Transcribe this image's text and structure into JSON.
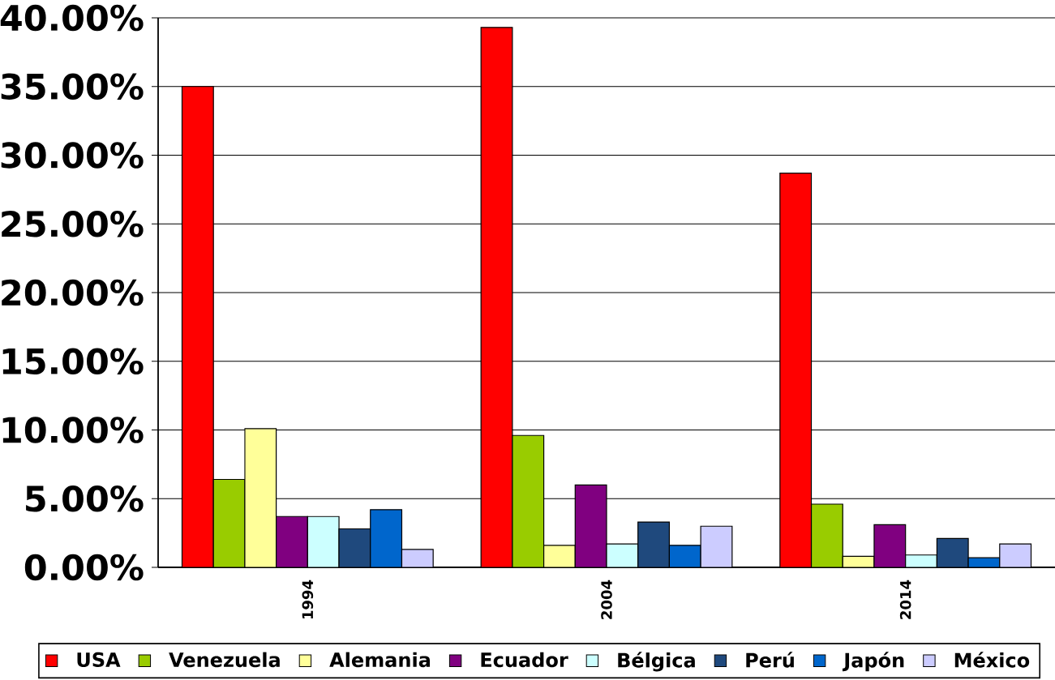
{
  "chart_data": {
    "type": "bar",
    "categories": [
      "1994",
      "2004",
      "2014"
    ],
    "series": [
      {
        "name": "USA",
        "color": "#ff0000",
        "values": [
          35.0,
          39.3,
          28.7
        ]
      },
      {
        "name": "Venezuela",
        "color": "#99cc00",
        "values": [
          6.4,
          9.6,
          4.6
        ]
      },
      {
        "name": "Alemania",
        "color": "#ffff99",
        "values": [
          10.1,
          1.6,
          0.8
        ]
      },
      {
        "name": "Ecuador",
        "color": "#800080",
        "values": [
          3.7,
          6.0,
          3.1
        ]
      },
      {
        "name": "Bélgica",
        "color": "#ccffff",
        "values": [
          3.7,
          1.7,
          0.9
        ]
      },
      {
        "name": "Perú",
        "color": "#1f497d",
        "values": [
          2.8,
          3.3,
          2.1
        ]
      },
      {
        "name": "Japón",
        "color": "#0066cc",
        "values": [
          4.2,
          1.6,
          0.7
        ]
      },
      {
        "name": "México",
        "color": "#ccccff",
        "values": [
          1.3,
          3.0,
          1.7
        ]
      }
    ],
    "ylim": [
      0,
      40
    ],
    "yticks": [
      {
        "value": 0,
        "label": "0.00%"
      },
      {
        "value": 5,
        "label": "5.00%"
      },
      {
        "value": 10,
        "label": "10.00%"
      },
      {
        "value": 15,
        "label": "15.00%"
      },
      {
        "value": 20,
        "label": "20.00%"
      },
      {
        "value": 25,
        "label": "25.00%"
      },
      {
        "value": 30,
        "label": "30.00%"
      },
      {
        "value": 35,
        "label": "35.00%"
      },
      {
        "value": 40,
        "label": "40.00%"
      }
    ],
    "grid": "y",
    "legend": "bottom"
  }
}
